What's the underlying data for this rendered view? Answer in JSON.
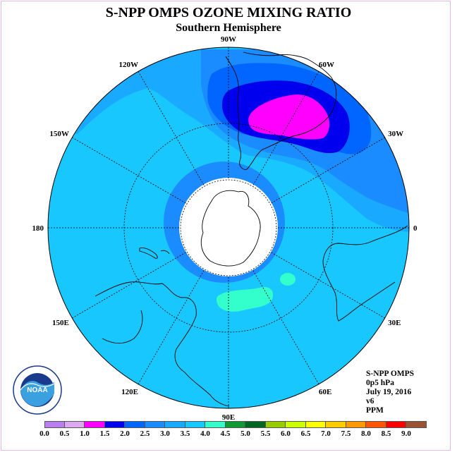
{
  "title": "S-NPP OMPS OZONE MIXING RATIO",
  "subtitle": "Southern Hemisphere",
  "info": {
    "line1": "S-NPP OMPS",
    "line2": "0p5 hPa",
    "line3": "July 19, 2016",
    "line4": "v6",
    "line5": "PPM"
  },
  "logo": {
    "icon": "noaa-logo",
    "text": "NOAA",
    "ring_text": "NATIONAL OCEANIC AND ATMOSPHERIC ADMINISTRATION · U.S. DEPARTMENT OF COMMERCE"
  },
  "map": {
    "projection": "south-polar-stereographic",
    "longitude_labels": [
      {
        "text": "90W",
        "lon": -90
      },
      {
        "text": "60W",
        "lon": -60
      },
      {
        "text": "30W",
        "lon": -30
      },
      {
        "text": "0",
        "lon": 0
      },
      {
        "text": "30E",
        "lon": 30
      },
      {
        "text": "60E",
        "lon": 60
      },
      {
        "text": "90E",
        "lon": 90
      },
      {
        "text": "120E",
        "lon": 120
      },
      {
        "text": "150E",
        "lon": 150
      },
      {
        "text": "180",
        "lon": 180
      },
      {
        "text": "150W",
        "lon": -150
      },
      {
        "text": "120W",
        "lon": -120
      }
    ],
    "no_data_region": "polar night (white cap)",
    "background_level_ppm": "3.0-3.5",
    "max_level_ppm": "1.0-1.5 minimum near South America",
    "colors": {
      "bg": "#19c7ff",
      "light_blue": "#19aaff",
      "blue": "#1a8cff",
      "blue2": "#0066ff",
      "dark_blue": "#0000ee",
      "magenta": "#ff00ff",
      "cyan_green": "#33ffcc"
    }
  },
  "colorbar": {
    "labels": [
      "0.0",
      "0.5",
      "1.0",
      "1.5",
      "2.0",
      "2.5",
      "3.0",
      "3.5",
      "4.0",
      "4.5",
      "5.0",
      "5.5",
      "6.0",
      "6.5",
      "7.0",
      "7.5",
      "8.0",
      "8.5",
      "9.0"
    ],
    "colors": [
      "#b97ff0",
      "#dca9f0",
      "#ff00ff",
      "#0000ee",
      "#0066ff",
      "#1a8cff",
      "#19aaff",
      "#19c7ff",
      "#33ffcc",
      "#119933",
      "#006622",
      "#99cc00",
      "#ccff00",
      "#ffff00",
      "#ffcc00",
      "#ff9900",
      "#ff5500",
      "#ff0000",
      "#995533"
    ]
  }
}
